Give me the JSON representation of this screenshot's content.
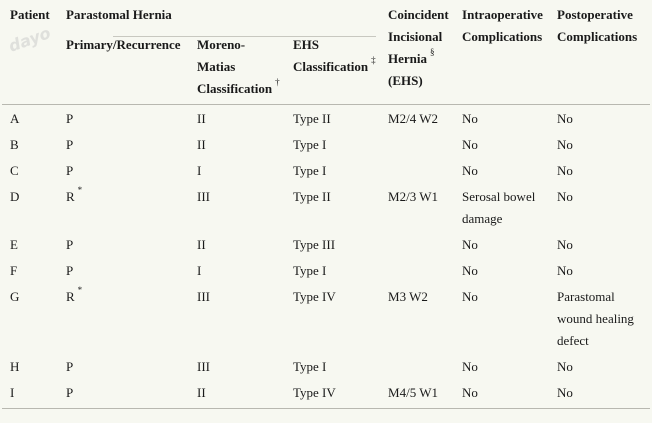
{
  "headers": {
    "patient": "Patient",
    "group": "Parastomal Hernia",
    "primary_recurrence": "Primary/Recurrence",
    "moreno_matias_line1": "Moreno-",
    "moreno_matias_line2": "Matias",
    "moreno_matias_line3": "Classification",
    "moreno_mark": "†",
    "ehs_line1": "EHS",
    "ehs_line2": "Classification",
    "ehs_mark": "‡",
    "coincident_line1": "Coincident",
    "coincident_line2": "Incisional",
    "coincident_line3": "Hernia",
    "coincident_line4": "(EHS)",
    "coincident_mark": "§",
    "intraop_line1": "Intraoperative",
    "intraop_line2": "Complications",
    "postop_line1": "Postoperative",
    "postop_line2": "Complications"
  },
  "watermark": "dayo",
  "rows": [
    {
      "patient": "A",
      "pr": "P",
      "pr_mark": "",
      "moreno": "II",
      "ehs": "Type II",
      "coincident": "M2/4 W2",
      "intraop": "No",
      "postop": "No"
    },
    {
      "patient": "B",
      "pr": "P",
      "pr_mark": "",
      "moreno": "II",
      "ehs": "Type I",
      "coincident": "",
      "intraop": "No",
      "postop": "No"
    },
    {
      "patient": "C",
      "pr": "P",
      "pr_mark": "",
      "moreno": "I",
      "ehs": "Type I",
      "coincident": "",
      "intraop": "No",
      "postop": "No"
    },
    {
      "patient": "D",
      "pr": "R",
      "pr_mark": "*",
      "moreno": "III",
      "ehs": "Type II",
      "coincident": "M2/3 W1",
      "intraop": "Serosal bowel damage",
      "postop": "No"
    },
    {
      "patient": "E",
      "pr": "P",
      "pr_mark": "",
      "moreno": "II",
      "ehs": "Type III",
      "coincident": "",
      "intraop": "No",
      "postop": "No"
    },
    {
      "patient": "F",
      "pr": "P",
      "pr_mark": "",
      "moreno": "I",
      "ehs": "Type I",
      "coincident": "",
      "intraop": "No",
      "postop": "No"
    },
    {
      "patient": "G",
      "pr": "R",
      "pr_mark": "*",
      "moreno": "III",
      "ehs": "Type IV",
      "coincident": "M3 W2",
      "intraop": "No",
      "postop": "Parastomal wound healing defect"
    },
    {
      "patient": "H",
      "pr": "P",
      "pr_mark": "",
      "moreno": "III",
      "ehs": "Type I",
      "coincident": "",
      "intraop": "No",
      "postop": "No"
    },
    {
      "patient": "I",
      "pr": "P",
      "pr_mark": "",
      "moreno": "II",
      "ehs": "Type IV",
      "coincident": "M4/5 W1",
      "intraop": "No",
      "postop": "No"
    }
  ]
}
